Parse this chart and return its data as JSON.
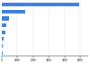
{
  "values": [
    4953,
    1499,
    436,
    295,
    208,
    87,
    56,
    41
  ],
  "bar_color": "#3d7edb",
  "background_color": "#ffffff",
  "xlim": [
    0,
    5500
  ],
  "grid_color": "#d9d9d9",
  "bar_height": 0.55,
  "figsize": [
    1.0,
    0.71
  ],
  "dpi": 100
}
